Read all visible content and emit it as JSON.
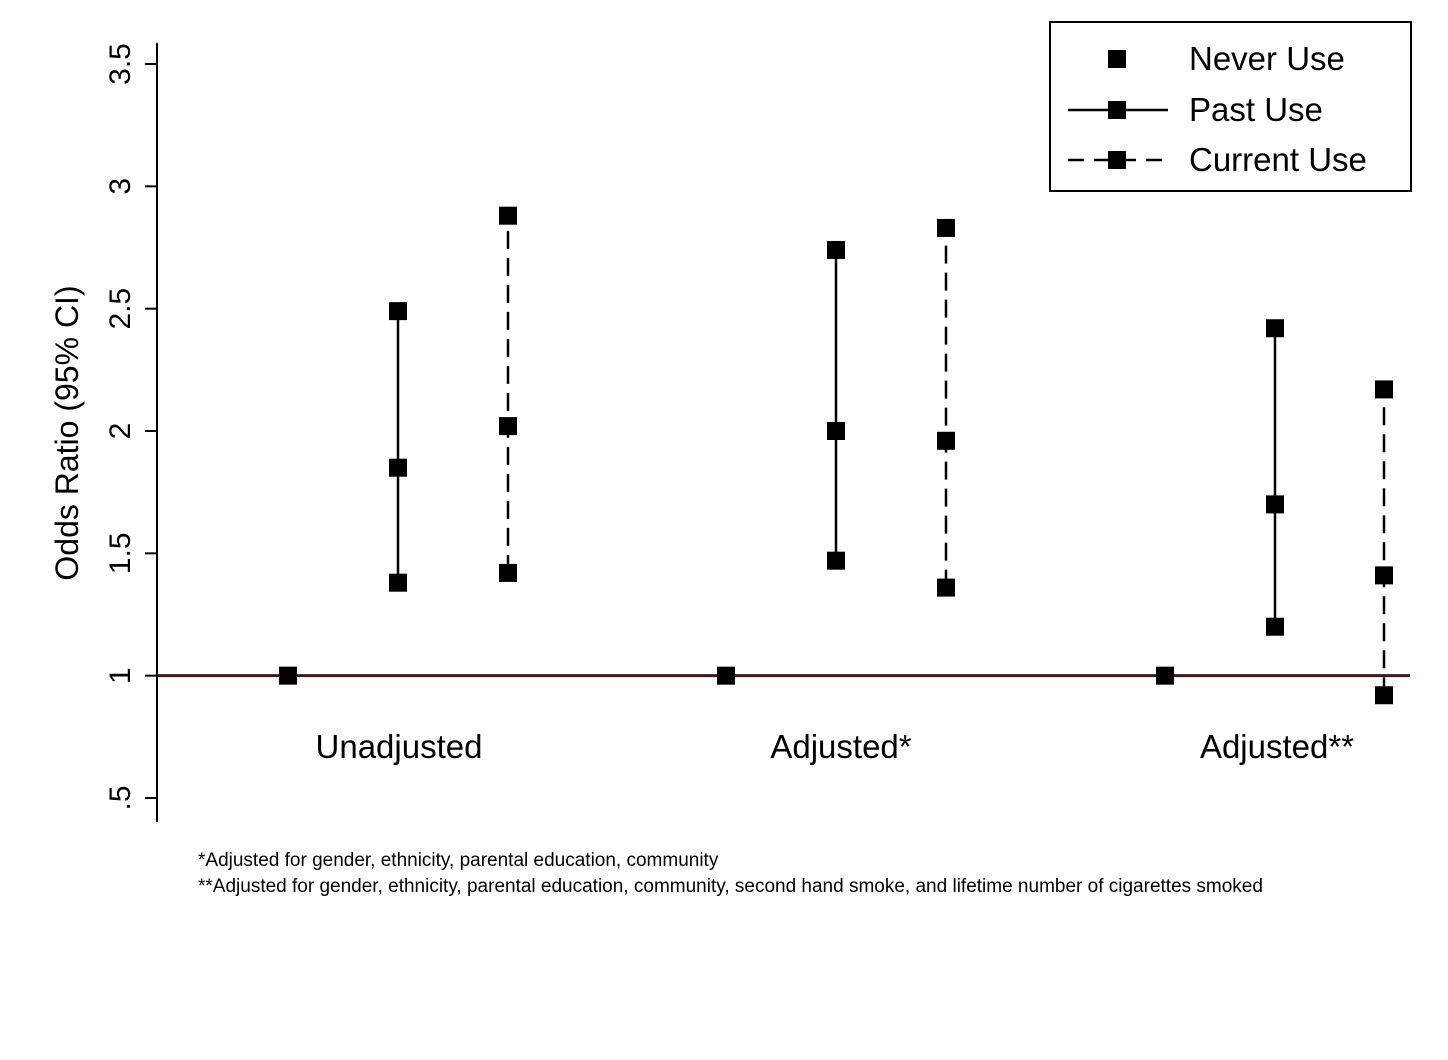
{
  "colors": {
    "marker": "#000000",
    "reference_line": "#3b1a1a",
    "axis": "#000000",
    "legend_border": "#000000",
    "background": "#ffffff"
  },
  "chart_data": {
    "type": "scatter",
    "ylabel": "Odds Ratio (95% CI)",
    "ylim": [
      0.5,
      3.5
    ],
    "yticks": [
      0.5,
      1,
      1.5,
      2,
      2.5,
      3,
      3.5
    ],
    "ytick_labels": [
      ".5",
      "1",
      "1.5",
      "2",
      "2.5",
      "3",
      "3.5"
    ],
    "grid": false,
    "legend_position": "top-right",
    "reference_line": 1,
    "groups": [
      "Unadjusted",
      "Adjusted*",
      "Adjusted**"
    ],
    "series": [
      {
        "name": "Never Use",
        "line_style": "none",
        "points": [
          {
            "group": "Unadjusted",
            "estimate": 1.0
          },
          {
            "group": "Adjusted*",
            "estimate": 1.0
          },
          {
            "group": "Adjusted**",
            "estimate": 1.0
          }
        ]
      },
      {
        "name": "Past Use",
        "line_style": "solid",
        "points": [
          {
            "group": "Unadjusted",
            "estimate": 1.85,
            "lower": 1.38,
            "upper": 2.49
          },
          {
            "group": "Adjusted*",
            "estimate": 2.0,
            "lower": 1.47,
            "upper": 2.74
          },
          {
            "group": "Adjusted**",
            "estimate": 1.7,
            "lower": 1.2,
            "upper": 2.42
          }
        ]
      },
      {
        "name": "Current Use",
        "line_style": "dashed",
        "points": [
          {
            "group": "Unadjusted",
            "estimate": 2.02,
            "lower": 1.42,
            "upper": 2.88
          },
          {
            "group": "Adjusted*",
            "estimate": 1.96,
            "lower": 1.36,
            "upper": 2.83
          },
          {
            "group": "Adjusted**",
            "estimate": 1.41,
            "lower": 0.92,
            "upper": 2.17
          }
        ]
      }
    ]
  },
  "footnotes": {
    "note1": "*Adjusted for gender, ethnicity, parental education, community",
    "note2": "**Adjusted for gender, ethnicity, parental education, community, second hand smoke, and lifetime number of cigarettes smoked"
  }
}
